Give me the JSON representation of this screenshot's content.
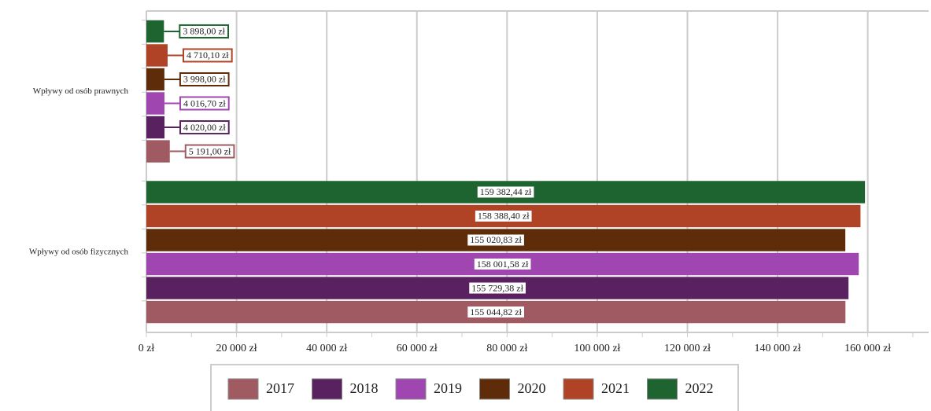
{
  "chart_data": {
    "type": "hbar",
    "categories": [
      "Wpływy od osób prawnych",
      "Wpływy od osób fizycznych"
    ],
    "series": [
      {
        "name": "2017",
        "color": "#a05a62",
        "values": [
          5191.0,
          155044.82
        ],
        "value_labels": [
          "5 191,00 zł",
          "155 044,82 zł"
        ]
      },
      {
        "name": "2018",
        "color": "#5a2160",
        "values": [
          4020.0,
          155729.38
        ],
        "value_labels": [
          "4 020,00 zł",
          "155 729,38 zł"
        ]
      },
      {
        "name": "2019",
        "color": "#a046b0",
        "values": [
          4016.7,
          158001.58
        ],
        "value_labels": [
          "4 016,70 zł",
          "158 001,58 zł"
        ]
      },
      {
        "name": "2020",
        "color": "#5e2c08",
        "values": [
          3998.0,
          155020.83
        ],
        "value_labels": [
          "3 998,00 zł",
          "155 020,83 zł"
        ]
      },
      {
        "name": "2021",
        "color": "#b04325",
        "values": [
          4710.1,
          158388.4
        ],
        "value_labels": [
          "4 710,10 zł",
          "158 388,40 zł"
        ]
      },
      {
        "name": "2022",
        "color": "#1e6430",
        "values": [
          3898.0,
          159382.44
        ],
        "value_labels": [
          "3 898,00 zł",
          "159 382,44 zł"
        ]
      }
    ],
    "xlim": [
      0,
      173500
    ],
    "xticks": [
      {
        "value": 0,
        "label": "0 zł"
      },
      {
        "value": 20000,
        "label": "20 000 zł"
      },
      {
        "value": 40000,
        "label": "40 000 zł"
      },
      {
        "value": 60000,
        "label": "60 000 zł"
      },
      {
        "value": 80000,
        "label": "80 000 zł"
      },
      {
        "value": 100000,
        "label": "100 000 zł"
      },
      {
        "value": 120000,
        "label": "120 000 zł"
      },
      {
        "value": 140000,
        "label": "140 000 zł"
      },
      {
        "value": 160000,
        "label": "160 000 zł"
      }
    ],
    "grid": true,
    "legend": "bottom"
  }
}
